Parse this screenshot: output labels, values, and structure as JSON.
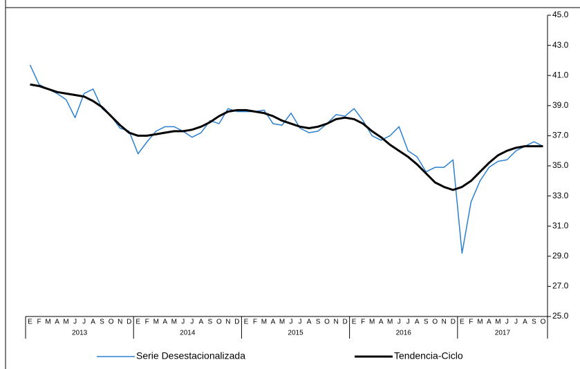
{
  "chart_data": {
    "type": "line",
    "categories": [
      "E",
      "F",
      "M",
      "A",
      "M",
      "J",
      "J",
      "A",
      "S",
      "O",
      "N",
      "D",
      "E",
      "F",
      "M",
      "A",
      "M",
      "J",
      "J",
      "A",
      "S",
      "O",
      "N",
      "D",
      "E",
      "F",
      "M",
      "A",
      "M",
      "J",
      "J",
      "A",
      "S",
      "O",
      "N",
      "D",
      "E",
      "F",
      "M",
      "A",
      "M",
      "J",
      "J",
      "A",
      "S",
      "O",
      "N",
      "D",
      "E",
      "F",
      "M",
      "A",
      "M",
      "J",
      "J",
      "A",
      "S",
      "O"
    ],
    "groups": [
      {
        "label": "2013",
        "count": 12
      },
      {
        "label": "2014",
        "count": 12
      },
      {
        "label": "2015",
        "count": 12
      },
      {
        "label": "2016",
        "count": 12
      },
      {
        "label": "2017",
        "count": 10
      }
    ],
    "series": [
      {
        "name": "Serie Desestacionalizada",
        "color": "#2b7fd0",
        "width": 1.5,
        "values": [
          41.7,
          40.4,
          40.1,
          39.8,
          39.4,
          38.2,
          39.8,
          40.1,
          38.8,
          38.3,
          37.5,
          37.3,
          35.8,
          36.6,
          37.3,
          37.6,
          37.6,
          37.3,
          36.9,
          37.2,
          38.0,
          37.8,
          38.8,
          38.6,
          38.6,
          38.6,
          38.7,
          37.8,
          37.7,
          38.5,
          37.5,
          37.2,
          37.3,
          37.8,
          38.4,
          38.3,
          38.8,
          38.0,
          37.0,
          36.7,
          37.0,
          37.6,
          36.0,
          35.6,
          34.6,
          34.9,
          34.9,
          35.4,
          29.2,
          32.6,
          34.0,
          34.9,
          35.3,
          35.4,
          36.0,
          36.3,
          36.6,
          36.3
        ]
      },
      {
        "name": "Tendencia-Ciclo",
        "color": "#000000",
        "width": 3,
        "values": [
          40.4,
          40.3,
          40.1,
          39.9,
          39.8,
          39.7,
          39.6,
          39.3,
          38.9,
          38.3,
          37.7,
          37.2,
          37.0,
          37.0,
          37.1,
          37.2,
          37.3,
          37.3,
          37.4,
          37.6,
          37.9,
          38.3,
          38.6,
          38.7,
          38.7,
          38.6,
          38.5,
          38.3,
          38.0,
          37.8,
          37.6,
          37.5,
          37.6,
          37.8,
          38.1,
          38.2,
          38.1,
          37.8,
          37.3,
          36.9,
          36.4,
          36.0,
          35.6,
          35.1,
          34.5,
          33.9,
          33.6,
          33.4,
          33.6,
          34.0,
          34.6,
          35.2,
          35.7,
          36.0,
          36.2,
          36.3,
          36.3,
          36.3
        ]
      }
    ],
    "ylim": [
      25,
      45
    ],
    "yticks": [
      {
        "value": 25,
        "label": "25.0"
      },
      {
        "value": 27,
        "label": "27.0"
      },
      {
        "value": 29,
        "label": "29.0"
      },
      {
        "value": 31,
        "label": "31.0"
      },
      {
        "value": 33,
        "label": "33.0"
      },
      {
        "value": 35,
        "label": "35.0"
      },
      {
        "value": 37,
        "label": "37.0"
      },
      {
        "value": 39,
        "label": "39.0"
      },
      {
        "value": 41,
        "label": "41.0"
      },
      {
        "value": 43,
        "label": "43.0"
      },
      {
        "value": 45,
        "label": "45.0"
      }
    ]
  }
}
